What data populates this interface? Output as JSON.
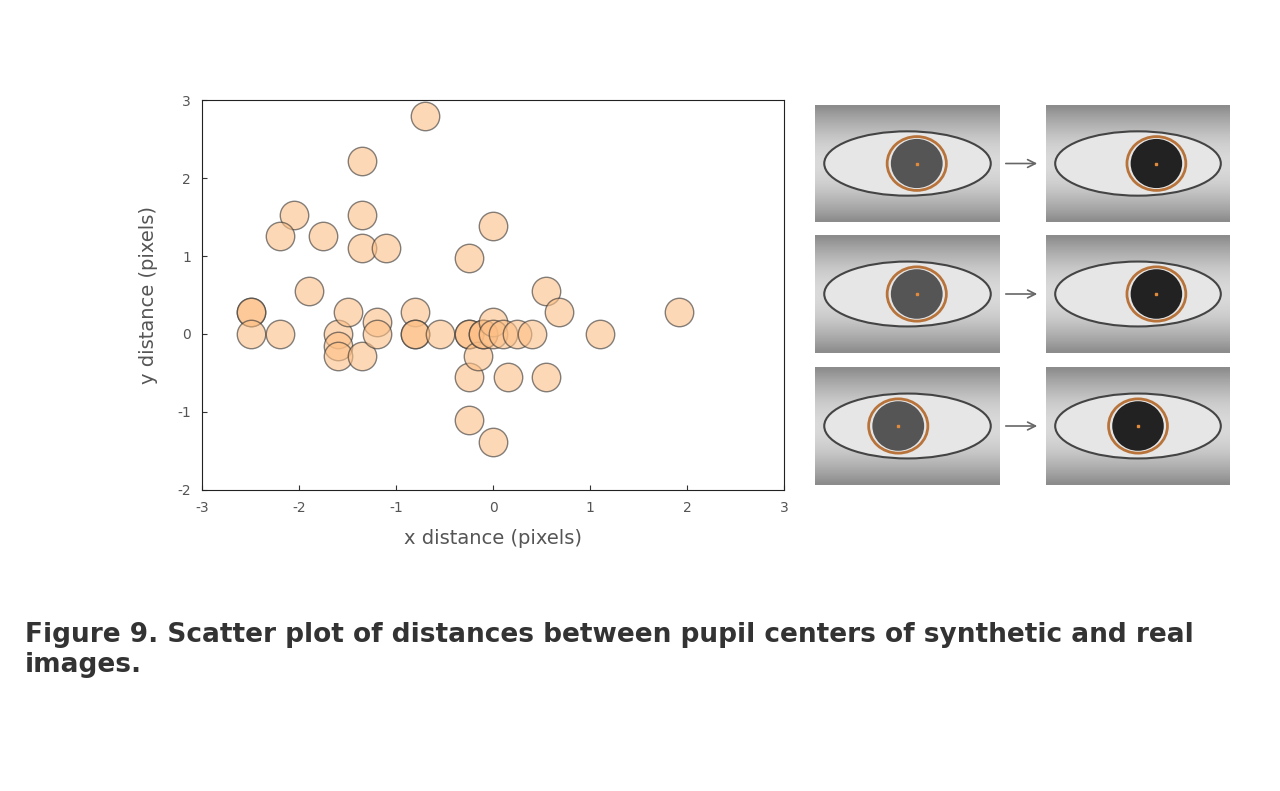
{
  "chart_data": {
    "type": "scatter",
    "x_label": "x distance (pixels)",
    "y_label": "y distance (pixels)",
    "x": [
      -2.5,
      -2.5,
      -2.5,
      -2.2,
      -2.05,
      -2.2,
      -1.75,
      -1.9,
      -1.6,
      -1.6,
      -1.6,
      -1.5,
      -1.35,
      -1.35,
      -1.35,
      -1.35,
      -1.1,
      -1.2,
      -1.2,
      -0.7,
      -0.8,
      -0.8,
      -0.8,
      -0.55,
      -0.25,
      -0.25,
      -0.25,
      -0.25,
      -0.25,
      -0.15,
      -0.1,
      -0.1,
      0,
      0,
      0,
      0,
      0.1,
      0.15,
      0.25,
      0.4,
      0.55,
      0.55,
      0.68,
      1.1,
      1.92
    ],
    "values": [
      0.28,
      0.28,
      0,
      0,
      1.52,
      1.25,
      1.25,
      0.55,
      0,
      -0.15,
      -0.28,
      0.28,
      -0.28,
      2.22,
      1.52,
      1.1,
      1.1,
      0.15,
      0,
      2.8,
      0.28,
      0,
      0,
      0,
      0.97,
      0,
      0,
      -0.55,
      -1.1,
      -0.28,
      0,
      0,
      1.38,
      0.15,
      0,
      -1.38,
      0,
      -0.55,
      0,
      0,
      0.55,
      -0.55,
      0.28,
      0,
      0.28
    ],
    "color": "#fdbf86",
    "marker": "circle",
    "xlim": [
      -3,
      3
    ],
    "xticks": [
      -3,
      -2,
      -1,
      0,
      1,
      2,
      3
    ],
    "ylim": [
      -2,
      3
    ],
    "yticks": [
      -2,
      -1,
      0,
      1,
      2,
      3
    ],
    "grid": false
  },
  "caption": "Figure 9. Scatter plot of distances between pupil centers of synthetic and real images."
}
